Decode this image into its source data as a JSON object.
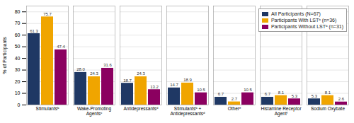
{
  "chart_data": {
    "type": "bar",
    "categories": [
      "Stimulantsᵇ",
      "Wake-Promoting\nAgentsᶜ",
      "Antidepressantsᵈ",
      "Stimulantsᵇ +\nAntidepressantsᵈ",
      "Otherᵉ",
      "Histamine Receptor\nAgentᶠ",
      "Sodium Oxybate"
    ],
    "series": [
      {
        "name": "All Participants (N=67)",
        "color": "#1f3864",
        "values": [
          61.3,
          28.0,
          18.7,
          14.7,
          6.7,
          6.7,
          5.3
        ],
        "value_labels": [
          "61.3",
          "28.0",
          "18.7",
          "14.7",
          "6.7",
          "6.7",
          "5.3"
        ]
      },
      {
        "name": "Participants With LSTᵇ (n=36)",
        "color": "#f0a500",
        "values": [
          75.7,
          24.3,
          24.3,
          18.9,
          2.7,
          8.1,
          8.1
        ],
        "value_labels": [
          "75.7",
          "24.3",
          "24.3",
          "18.9",
          "2.7",
          "8.1",
          "8.1"
        ]
      },
      {
        "name": "Participants Without LSTᵇ (n=31)",
        "color": "#8b0060",
        "values": [
          47.4,
          31.6,
          13.2,
          10.5,
          10.5,
          5.3,
          2.6
        ],
        "value_labels": [
          "47.4",
          "31.6",
          "13.2",
          "10.5",
          "10.5",
          "5.3",
          "2.6"
        ]
      }
    ],
    "ylabel": "% of Participants",
    "ylim": [
      0,
      85
    ],
    "yticks": [
      0,
      10,
      20,
      30,
      40,
      50,
      60,
      70,
      80
    ],
    "grid": true,
    "legend": "upper right",
    "data_labels": true
  }
}
